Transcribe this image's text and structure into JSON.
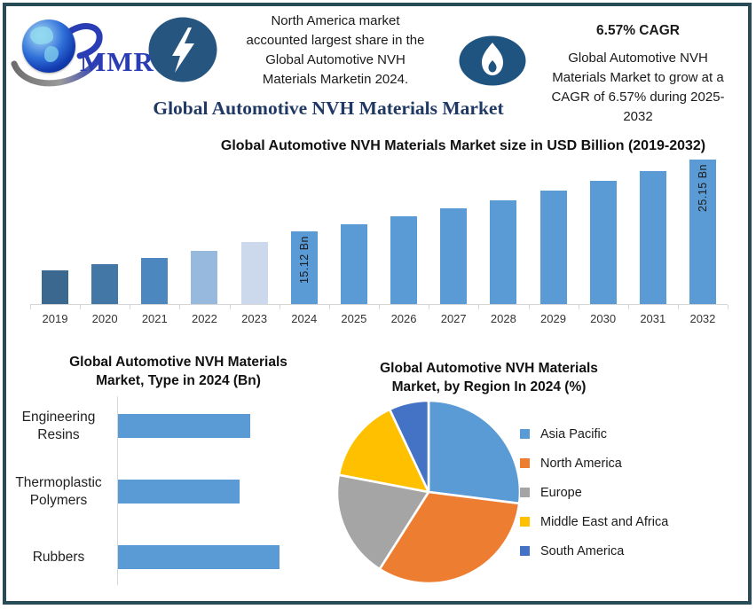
{
  "colors": {
    "accent_blue": "#5b9bd5",
    "icon_dark_blue": "#26567f",
    "frame_border": "#274b57",
    "title_navy": "#1f3864",
    "logo_blue": "#2b3db5"
  },
  "header": {
    "logo_text": "MMR",
    "highlight_note": "North America market\naccounted largest share in the\nGlobal Automotive NVH\nMaterials Marketin 2024.",
    "main_title": "Global Automotive NVH Materials Market",
    "cagr_headline": "6.57% CAGR",
    "cagr_body": "Global Automotive NVH\nMaterials Market to grow at a\nCAGR of 6.57% during 2025-\n2032"
  },
  "chart_data": [
    {
      "type": "bar",
      "title": "Global Automotive NVH Materials Market size in USD Billion (2019-2032)",
      "unit": "USD Billion",
      "categories": [
        "2019",
        "2020",
        "2021",
        "2022",
        "2023",
        "2024",
        "2025",
        "2026",
        "2027",
        "2028",
        "2029",
        "2030",
        "2031",
        "2032"
      ],
      "values": [
        9.7,
        10.6,
        11.4,
        12.4,
        13.6,
        15.12,
        16.11,
        17.17,
        18.3,
        19.5,
        20.78,
        22.15,
        23.6,
        25.15
      ],
      "data_labels": {
        "2024": "15.12 Bn",
        "2032": "25.15 Bn"
      },
      "values_estimated_except": [
        "2024",
        "2032"
      ],
      "bar_colors": [
        "#3b688f",
        "#4377a5",
        "#4d87c0",
        "#97b9de",
        "#ccd9ec",
        "#5b9bd5",
        "#5b9bd5",
        "#5b9bd5",
        "#5b9bd5",
        "#5b9bd5",
        "#5b9bd5",
        "#5b9bd5",
        "#5b9bd5",
        "#5b9bd5"
      ],
      "ylim": [
        4.96,
        25.15
      ],
      "grid": false,
      "legend": false
    },
    {
      "type": "bar",
      "orientation": "horizontal",
      "title": "Global Automotive NVH Materials\nMarket, Type in 2024 (Bn)",
      "categories": [
        "Engineering Resins",
        "Thermoplastic Polymers",
        "Rubbers"
      ],
      "display_labels": [
        "Engineering\nResins",
        "Thermoplastic\nPolymers",
        "Rubbers"
      ],
      "values": [
        4.9,
        4.5,
        6.0
      ],
      "values_estimated": true,
      "bar_color": "#5b9bd5",
      "grid": false,
      "legend": false
    },
    {
      "type": "pie",
      "title": "Global Automotive NVH Materials\nMarket, by Region In 2024 (%)",
      "labels": [
        "Asia Pacific",
        "North America",
        "Europe",
        "Middle East and Africa",
        "South America"
      ],
      "values": [
        27,
        32,
        19,
        15,
        7
      ],
      "values_estimated": true,
      "colors": [
        "#5b9bd5",
        "#ed7d31",
        "#a5a5a5",
        "#ffc000",
        "#4472c4"
      ],
      "legend_position": "right",
      "start_angle_deg": 0
    }
  ]
}
